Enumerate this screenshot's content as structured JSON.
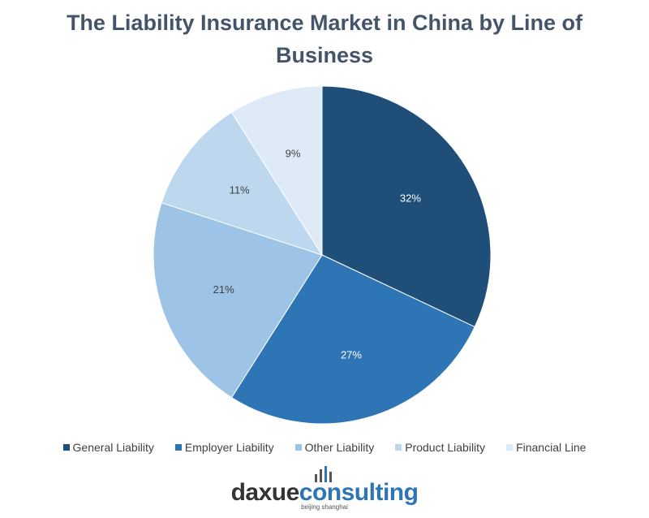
{
  "chart_data": {
    "type": "pie",
    "title": "The Liability Insurance Market in China by Line of Business",
    "categories": [
      "General Liability",
      "Employer Liability",
      "Other Liability",
      "Product Liability",
      "Financial Line"
    ],
    "values": [
      32,
      27,
      21,
      11,
      9
    ],
    "value_labels": [
      "32%",
      "27%",
      "21%",
      "11%",
      "9%"
    ],
    "colors": [
      "#1f4e79",
      "#2e75b6",
      "#9dc3e6",
      "#bdd7ee",
      "#deebf7"
    ],
    "legend": "bottom"
  },
  "logo": {
    "parts": [
      "daxue",
      "consulting"
    ],
    "tagline": "beijing shanghai"
  }
}
